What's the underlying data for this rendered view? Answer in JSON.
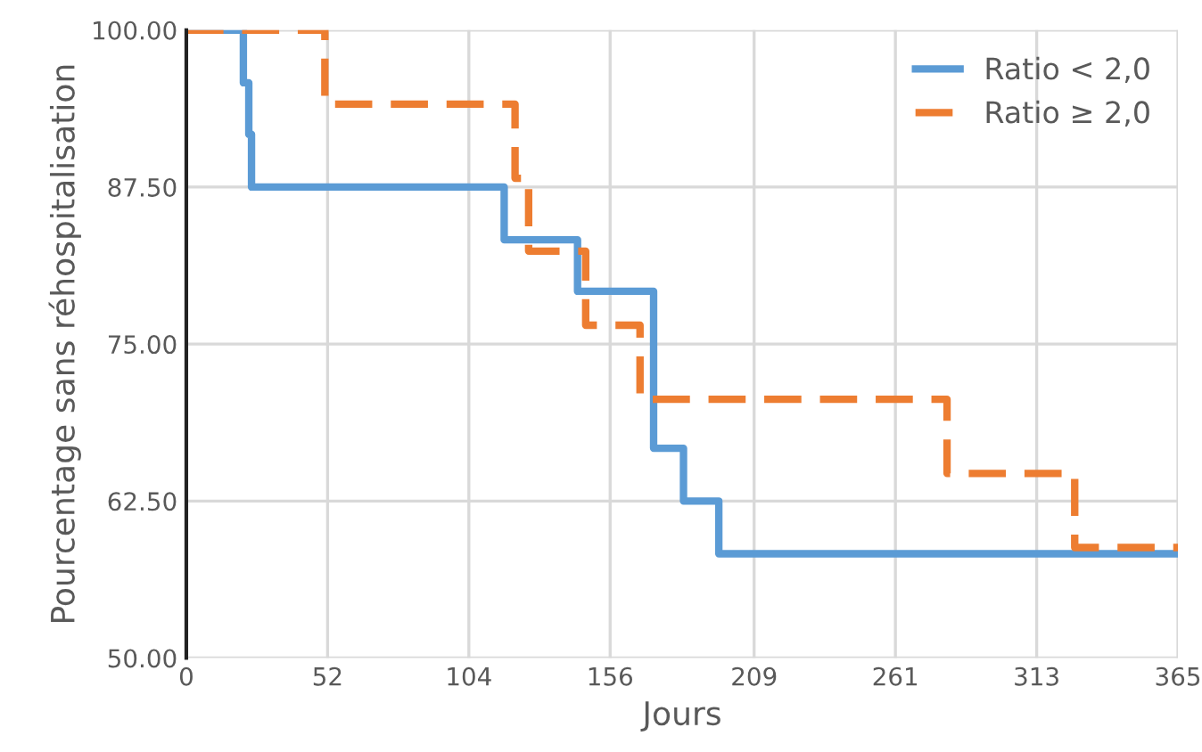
{
  "chart_data": {
    "type": "step",
    "xlabel": "Jours",
    "ylabel": "Pourcentage sans réhospitalisation",
    "xlim": [
      0,
      365
    ],
    "xticks": [
      0,
      52,
      104,
      156,
      209,
      261,
      313,
      365
    ],
    "ylim": [
      50,
      100
    ],
    "yticks": [
      {
        "value": 50,
        "label": "50.00"
      },
      {
        "value": 62.5,
        "label": "62.50"
      },
      {
        "value": 75,
        "label": "75.00"
      },
      {
        "value": 87.5,
        "label": "87.50"
      },
      {
        "value": 100,
        "label": "100.00"
      }
    ],
    "grid": true,
    "legend": "top right",
    "series": [
      {
        "name": "Ratio < 2,0",
        "color": "#5b9bd5",
        "line_style": "solid",
        "x": [
          0,
          21,
          23,
          24,
          117,
          144,
          172,
          183,
          196,
          365
        ],
        "values": [
          100,
          95.8,
          91.7,
          87.5,
          83.3,
          79.2,
          66.7,
          62.5,
          58.3,
          58.3
        ]
      },
      {
        "name": "Ratio ≥ 2,0",
        "color": "#ed7d31",
        "line_style": "dashed",
        "x": [
          0,
          51,
          121,
          126,
          147,
          167,
          280,
          327,
          365
        ],
        "values": [
          100,
          94.1,
          88.2,
          82.4,
          76.5,
          70.6,
          64.7,
          58.8,
          58.8
        ]
      }
    ]
  }
}
